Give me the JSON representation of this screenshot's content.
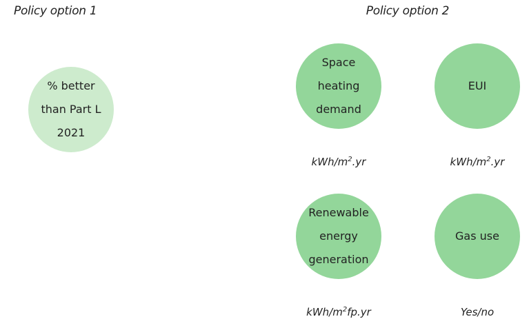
{
  "policy_options": [
    {
      "title": "Policy option 1",
      "metrics": [
        {
          "label": [
            "% better",
            "than Part L",
            "2021"
          ]
        }
      ]
    },
    {
      "title": "Policy option 2",
      "metrics": [
        {
          "label": [
            "Space",
            "heating",
            "demand"
          ],
          "unit": {
            "base": "kWh/m",
            "sup": "2",
            "rest": ".yr"
          }
        },
        {
          "label": [
            "EUI"
          ],
          "unit": {
            "base": "kWh/m",
            "sup": "2",
            "rest": ".yr"
          }
        },
        {
          "label": [
            "Renewable",
            "energy",
            "generation"
          ],
          "unit": {
            "base": "kWh/m",
            "sup": "2",
            "rest": "fp.yr"
          }
        },
        {
          "label": [
            "Gas use"
          ],
          "unit": {
            "base": "Yes/no"
          }
        }
      ]
    }
  ]
}
